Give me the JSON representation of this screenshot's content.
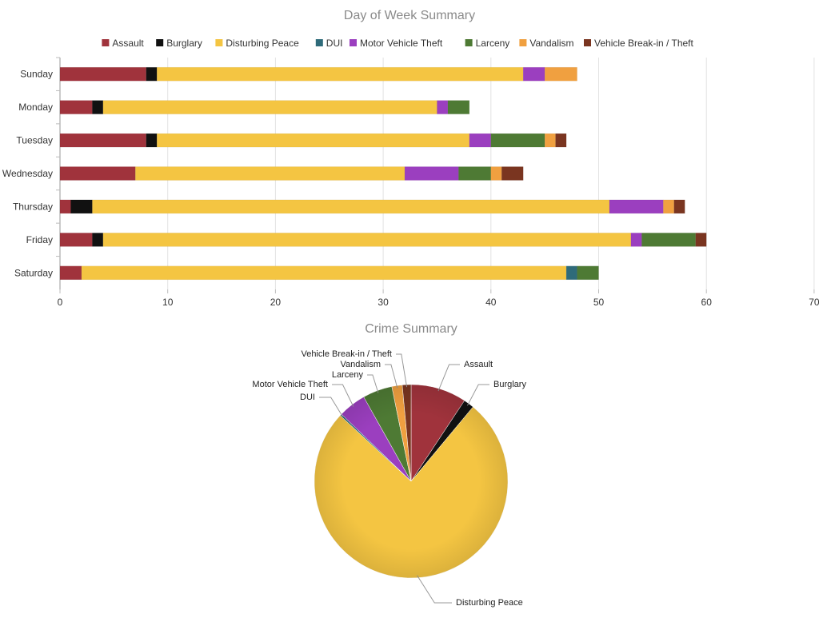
{
  "chart_data": [
    {
      "type": "bar",
      "orientation": "horizontal",
      "stacked": true,
      "title": "Day of Week Summary",
      "legend_position": "top",
      "grid": true,
      "xlim": [
        0,
        70
      ],
      "x_ticks": [
        "0",
        "10",
        "20",
        "30",
        "40",
        "50",
        "60",
        "70"
      ],
      "categories": [
        "Sunday",
        "Monday",
        "Tuesday",
        "Wednesday",
        "Thursday",
        "Friday",
        "Saturday"
      ],
      "series": [
        {
          "name": "Assault",
          "color": "#a0333c",
          "values": [
            8,
            3,
            8,
            7,
            1,
            3,
            2
          ]
        },
        {
          "name": "Burglary",
          "color": "#111111",
          "values": [
            1,
            1,
            1,
            0,
            2,
            1,
            0
          ]
        },
        {
          "name": "Disturbing Peace",
          "color": "#f4c542",
          "values": [
            34,
            31,
            29,
            25,
            48,
            49,
            45
          ]
        },
        {
          "name": "DUI",
          "color": "#2f6b7a",
          "values": [
            0,
            0,
            0,
            0,
            0,
            0,
            1
          ]
        },
        {
          "name": "Motor Vehicle Theft",
          "color": "#9b3fbf",
          "values": [
            2,
            1,
            2,
            5,
            5,
            1,
            0
          ]
        },
        {
          "name": "Larceny",
          "color": "#4e7a34",
          "values": [
            0,
            2,
            5,
            3,
            0,
            5,
            2
          ]
        },
        {
          "name": "Vandalism",
          "color": "#f0a040",
          "values": [
            3,
            0,
            1,
            1,
            1,
            0,
            0
          ]
        },
        {
          "name": "Vehicle Break-in / Theft",
          "color": "#7a3520",
          "values": [
            0,
            0,
            1,
            2,
            1,
            1,
            0
          ]
        }
      ]
    },
    {
      "type": "pie",
      "title": "Crime Summary",
      "labels": [
        "Assault",
        "Burglary",
        "Disturbing Peace",
        "DUI",
        "Motor Vehicle Theft",
        "Larceny",
        "Vandalism",
        "Vehicle Break-in / Theft"
      ],
      "values": [
        32,
        6,
        261,
        1,
        16,
        17,
        6,
        5
      ],
      "colors": [
        "#a0333c",
        "#111111",
        "#f4c542",
        "#2f6b7a",
        "#9b3fbf",
        "#4e7a34",
        "#f0a040",
        "#7a3520"
      ]
    }
  ]
}
